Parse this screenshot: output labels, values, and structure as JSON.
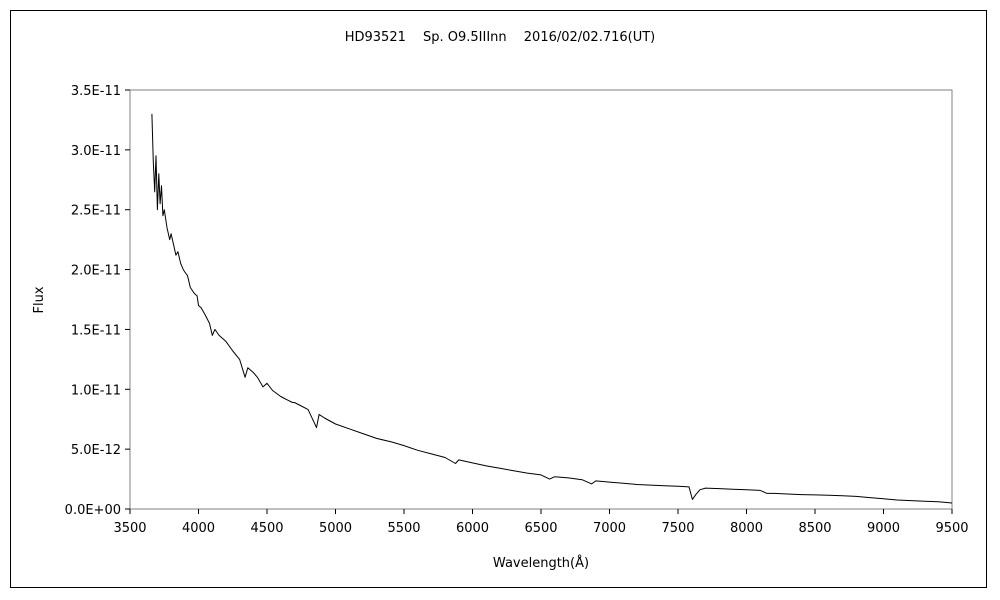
{
  "chart_data": {
    "type": "line",
    "title": "HD93521　 Sp. O9.5IIInn　 2016/02/02.716(UT)",
    "xlabel": "Wavelength(Å)",
    "ylabel": "Flux",
    "xlim": [
      3500,
      9500
    ],
    "ylim": [
      0,
      3.5e-11
    ],
    "xticks": [
      3500,
      4000,
      4500,
      5000,
      5500,
      6000,
      6500,
      7000,
      7500,
      8000,
      8500,
      9000,
      9500
    ],
    "xtick_labels": [
      "3500",
      "4000",
      "4500",
      "5000",
      "5500",
      "6000",
      "6500",
      "7000",
      "7500",
      "8000",
      "8500",
      "9000",
      "9500"
    ],
    "yticks": [
      0,
      5e-12,
      1e-11,
      1.5e-11,
      2e-11,
      2.5e-11,
      3e-11,
      3.5e-11
    ],
    "ytick_labels": [
      "0.0E+00",
      "5.0E-12",
      "1.0E-11",
      "1.5E-11",
      "2.0E-11",
      "2.5E-11",
      "3.0E-11",
      "3.5E-11"
    ],
    "grid": false,
    "series": [
      {
        "color": "#000000",
        "x": [
          3660,
          3670,
          3680,
          3690,
          3700,
          3710,
          3720,
          3730,
          3740,
          3750,
          3770,
          3790,
          3800,
          3820,
          3835,
          3850,
          3870,
          3889,
          3900,
          3920,
          3940,
          3970,
          3990,
          4000,
          4020,
          4050,
          4080,
          4101,
          4120,
          4150,
          4200,
          4250,
          4300,
          4340,
          4360,
          4400,
          4430,
          4471,
          4500,
          4541,
          4600,
          4650,
          4686,
          4700,
          4750,
          4800,
          4861,
          4880,
          4920,
          5000,
          5100,
          5200,
          5300,
          5411,
          5500,
          5600,
          5700,
          5800,
          5876,
          5900,
          6000,
          6100,
          6200,
          6300,
          6400,
          6500,
          6563,
          6600,
          6700,
          6800,
          6870,
          6900,
          7000,
          7100,
          7200,
          7300,
          7400,
          7500,
          7580,
          7605,
          7630,
          7660,
          7700,
          7800,
          7900,
          8000,
          8100,
          8150,
          8200,
          8300,
          8400,
          8500,
          8600,
          8700,
          8800,
          8900,
          9000,
          9100,
          9200,
          9300,
          9400,
          9500
        ],
        "y": [
          3.3e-11,
          2.9e-11,
          2.65e-11,
          2.95e-11,
          2.5e-11,
          2.8e-11,
          2.55e-11,
          2.7e-11,
          2.45e-11,
          2.5e-11,
          2.35e-11,
          2.25e-11,
          2.3e-11,
          2.2e-11,
          2.12e-11,
          2.15e-11,
          2.05e-11,
          2e-11,
          1.98e-11,
          1.95e-11,
          1.85e-11,
          1.8e-11,
          1.78e-11,
          1.7e-11,
          1.68e-11,
          1.62e-11,
          1.55e-11,
          1.45e-11,
          1.5e-11,
          1.45e-11,
          1.4e-11,
          1.32e-11,
          1.25e-11,
          1.1e-11,
          1.18e-11,
          1.14e-11,
          1.1e-11,
          1.02e-11,
          1.05e-11,
          9.9e-12,
          9.4e-12,
          9.1e-12,
          8.9e-12,
          8.9e-12,
          8.6e-12,
          8.3e-12,
          6.8e-12,
          7.9e-12,
          7.6e-12,
          7.1e-12,
          6.7e-12,
          6.3e-12,
          5.9e-12,
          5.6e-12,
          5.3e-12,
          4.9e-12,
          4.6e-12,
          4.3e-12,
          3.8e-12,
          4.1e-12,
          3.85e-12,
          3.6e-12,
          3.4e-12,
          3.2e-12,
          3e-12,
          2.85e-12,
          2.5e-12,
          2.7e-12,
          2.6e-12,
          2.45e-12,
          2.1e-12,
          2.35e-12,
          2.25e-12,
          2.15e-12,
          2.05e-12,
          2e-12,
          1.95e-12,
          1.9e-12,
          1.85e-12,
          8e-13,
          1.2e-12,
          1.6e-12,
          1.75e-12,
          1.7e-12,
          1.65e-12,
          1.6e-12,
          1.55e-12,
          1.3e-12,
          1.3e-12,
          1.25e-12,
          1.2e-12,
          1.18e-12,
          1.15e-12,
          1.1e-12,
          1.05e-12,
          9.5e-13,
          8.5e-13,
          7.5e-13,
          7e-13,
          6.5e-13,
          6e-13,
          5e-13
        ]
      }
    ]
  }
}
